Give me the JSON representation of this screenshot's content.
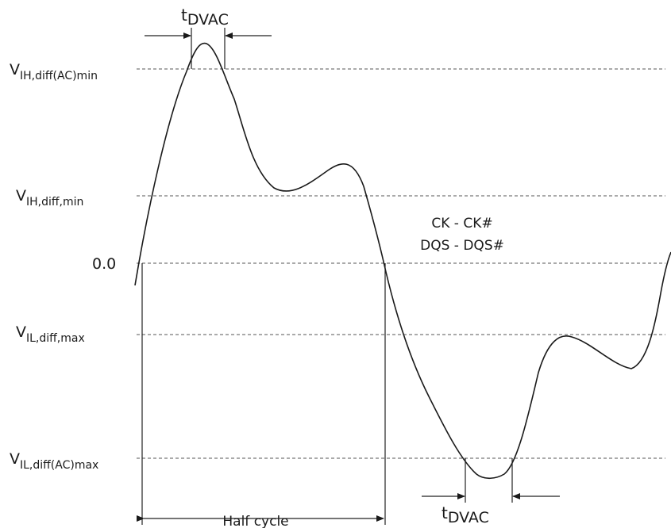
{
  "levels": [
    {
      "main": "V",
      "sub": "IH,diff(AC)min"
    },
    {
      "main": "V",
      "sub": "IH,diff,min"
    },
    {
      "main": "0.0",
      "sub": ""
    },
    {
      "main": "V",
      "sub": "IL,diff,max"
    },
    {
      "main": "V",
      "sub": "IL,diff(AC)max"
    }
  ],
  "signal_labels": {
    "line1": "CK - CK#",
    "line2": "DQS - DQS#"
  },
  "half_cycle_label": "Half cycle",
  "tdvac_top": {
    "main": "t",
    "sub": "DVAC"
  },
  "tdvac_bottom": {
    "main": "t",
    "sub": "DVAC"
  }
}
